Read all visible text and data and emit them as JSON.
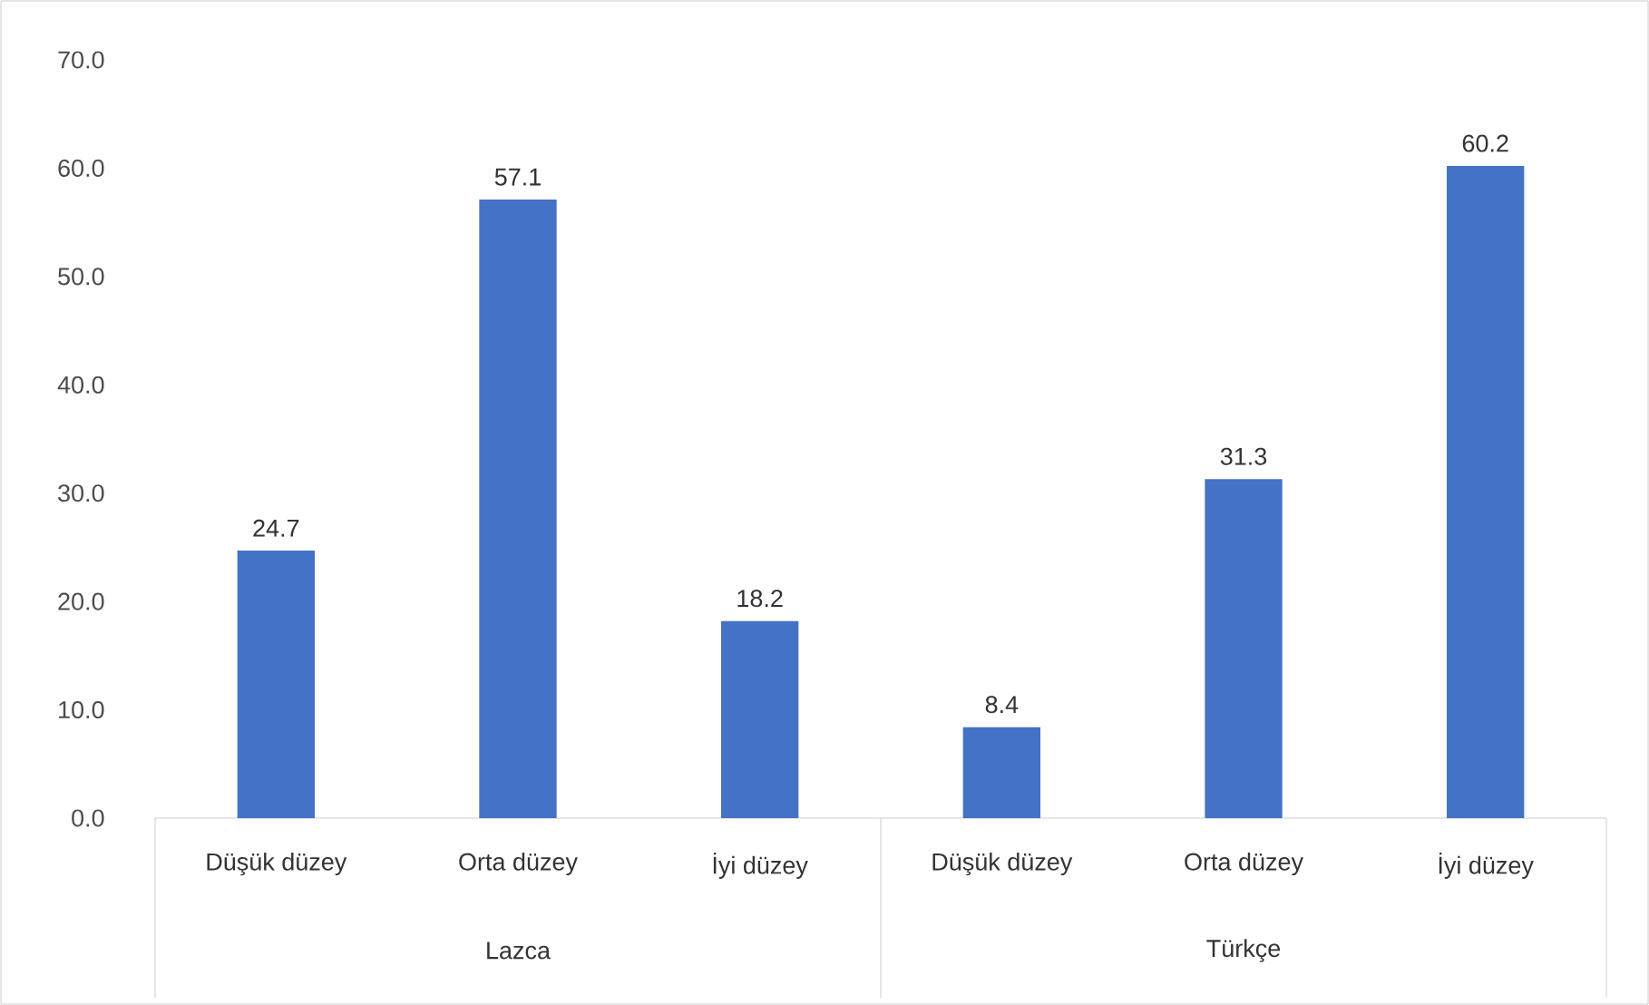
{
  "chart_data": {
    "type": "bar",
    "categories": [
      "Düşük düzey",
      "Orta düzey",
      "İyi düzey",
      "Düşük düzey",
      "Orta düzey",
      "İyi düzey"
    ],
    "values": [
      24.7,
      57.1,
      18.2,
      8.4,
      31.3,
      60.2
    ],
    "color": "#4472c4",
    "ylim": [
      0,
      70
    ],
    "yticks": [
      {
        "value": 0,
        "label": "0.0"
      },
      {
        "value": 10,
        "label": "10.0"
      },
      {
        "value": 20,
        "label": "20.0"
      },
      {
        "value": 30,
        "label": "30.0"
      },
      {
        "value": 40,
        "label": "40.0"
      },
      {
        "value": 50,
        "label": "50.0"
      },
      {
        "value": 60,
        "label": "60.0"
      },
      {
        "value": 70,
        "label": "70.0"
      }
    ],
    "annotations": [
      "Lazca",
      "Türkçe"
    ],
    "data_labels": true
  }
}
